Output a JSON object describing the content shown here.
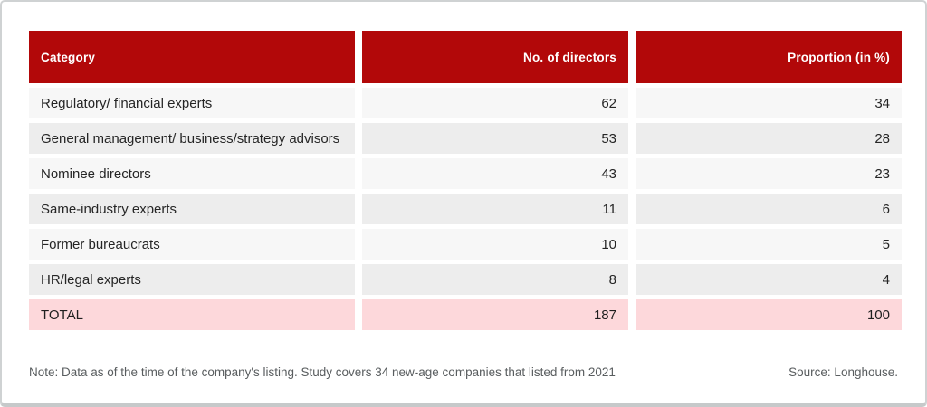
{
  "table": {
    "headers": {
      "category": "Category",
      "directors": "No. of directors",
      "proportion": "Proportion (in %)"
    },
    "rows": [
      {
        "category": "Regulatory/ financial experts",
        "directors": "62",
        "proportion": "34"
      },
      {
        "category": "General management/ business/strategy advisors",
        "directors": "53",
        "proportion": "28"
      },
      {
        "category": "Nominee directors",
        "directors": "43",
        "proportion": "23"
      },
      {
        "category": "Same-industry experts",
        "directors": "11",
        "proportion": "6"
      },
      {
        "category": "Former bureaucrats",
        "directors": "10",
        "proportion": "5"
      },
      {
        "category": "HR/legal experts",
        "directors": "8",
        "proportion": "4"
      }
    ],
    "total": {
      "category": "TOTAL",
      "directors": "187",
      "proportion": "100"
    }
  },
  "footer": {
    "note": "Note: Data as of the time of the company's listing. Study covers 34 new-age companies that listed from 2021",
    "source": "Source: Longhouse."
  },
  "colors": {
    "header_red": "#b20809",
    "row_light": "#f7f7f7",
    "row_alt": "#ededed",
    "total_pink": "#fdd8db",
    "footer_text": "#595d5f"
  },
  "chart_data": {
    "type": "table",
    "title": "",
    "columns": [
      "Category",
      "No. of directors",
      "Proportion (in %)"
    ],
    "rows": [
      [
        "Regulatory/ financial experts",
        62,
        34
      ],
      [
        "General management/ business/strategy advisors",
        53,
        28
      ],
      [
        "Nominee directors",
        43,
        23
      ],
      [
        "Same-industry experts",
        11,
        6
      ],
      [
        "Former bureaucrats",
        10,
        5
      ],
      [
        "HR/legal experts",
        8,
        4
      ],
      [
        "TOTAL",
        187,
        100
      ]
    ],
    "notes": [
      "Note: Data as of the time of the company's listing. Study covers 34 new-age companies that listed from 2021",
      "Source: Longhouse."
    ]
  }
}
